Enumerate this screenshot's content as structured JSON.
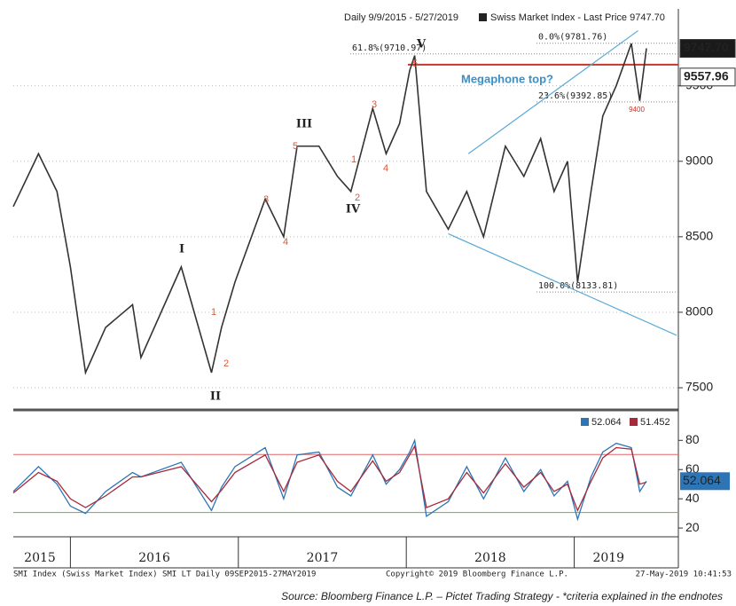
{
  "chart_data": [
    {
      "type": "line",
      "header": "Daily 9/9/2015 - 5/27/2019",
      "title": "Swiss Market Index - Last Price 9747.70",
      "year_labels": [
        "2015",
        "2016",
        "2017",
        "2018",
        "2019"
      ],
      "xticks": [
        2016,
        2017,
        2018,
        2019
      ],
      "xlim": [
        2015.66,
        2019.62
      ],
      "ylim": [
        7365,
        9980
      ],
      "yticks": [
        7500,
        8000,
        8500,
        9000,
        9500
      ],
      "grid": true,
      "x": [
        2015.66,
        2015.81,
        2015.92,
        2016.0,
        2016.09,
        2016.21,
        2016.37,
        2016.42,
        2016.66,
        2016.84,
        2016.9,
        2016.98,
        2017.16,
        2017.27,
        2017.35,
        2017.48,
        2017.59,
        2017.67,
        2017.8,
        2017.88,
        2017.96,
        2018.02,
        2018.05,
        2018.12,
        2018.25,
        2018.36,
        2018.46,
        2018.59,
        2018.7,
        2018.8,
        2018.88,
        2018.96,
        2019.02,
        2019.1,
        2019.17,
        2019.25,
        2019.34,
        2019.39,
        2019.43
      ],
      "series": [
        {
          "name": "Swiss Market Index",
          "color": "#333333",
          "values": [
            8700,
            9050,
            8800,
            8300,
            7600,
            7900,
            8050,
            7700,
            8300,
            7600,
            7900,
            8200,
            8750,
            8500,
            9100,
            9100,
            8900,
            8800,
            9350,
            9050,
            9250,
            9600,
            9700,
            8800,
            8550,
            8800,
            8500,
            9100,
            8900,
            9150,
            8800,
            9000,
            8200,
            8800,
            9300,
            9500,
            9780,
            9400,
            9748
          ]
        }
      ],
      "fib_levels": [
        {
          "label": "0.0%(9781.76)",
          "value": 9781.76
        },
        {
          "label": "61.8%(9710.97)",
          "value": 9710.97
        },
        {
          "label": "23.6%(9392.85)",
          "value": 9392.85
        },
        {
          "label": "100.0%(8133.81)",
          "value": 8133.81
        }
      ],
      "reference_lines": [
        {
          "value": 9640,
          "color": "#c0392b"
        }
      ],
      "trendlines": [
        {
          "color": "#5aa9d6",
          "x": [
            2018.37,
            2019.38
          ],
          "y": [
            9050,
            9865
          ]
        },
        {
          "color": "#5aa9d6",
          "x": [
            2018.25,
            2019.61
          ],
          "y": [
            8520,
            7847
          ]
        }
      ],
      "price_labels": [
        {
          "value": 9747.7,
          "label": "9747.70"
        },
        {
          "value": 9557.96,
          "label": "9557.96"
        }
      ],
      "annotations": [
        "V",
        "5",
        "III",
        "3",
        "5",
        "1",
        "4",
        "2",
        "IV",
        "3",
        "4",
        "I",
        "1",
        "2",
        "II",
        "Megaphone top?",
        "9400"
      ]
    },
    {
      "type": "line",
      "xlim": [
        2015.66,
        2019.62
      ],
      "ylim": [
        14,
        99
      ],
      "yticks": [
        20,
        40,
        60,
        80
      ],
      "x": [
        2015.66,
        2015.81,
        2015.92,
        2016.0,
        2016.09,
        2016.21,
        2016.37,
        2016.42,
        2016.66,
        2016.84,
        2016.9,
        2016.98,
        2017.16,
        2017.27,
        2017.35,
        2017.48,
        2017.59,
        2017.67,
        2017.8,
        2017.88,
        2017.96,
        2018.02,
        2018.05,
        2018.12,
        2018.25,
        2018.36,
        2018.46,
        2018.59,
        2018.7,
        2018.8,
        2018.88,
        2018.96,
        2019.02,
        2019.1,
        2019.17,
        2019.25,
        2019.34,
        2019.39,
        2019.43
      ],
      "series": [
        {
          "name": "52.064",
          "color": "#2e75b6",
          "values": [
            45,
            62,
            50,
            35,
            30,
            45,
            58,
            55,
            65,
            32,
            48,
            62,
            75,
            40,
            70,
            72,
            48,
            42,
            70,
            50,
            60,
            72,
            80,
            28,
            38,
            62,
            40,
            68,
            45,
            60,
            42,
            52,
            26,
            55,
            72,
            78,
            75,
            45,
            52.064
          ]
        },
        {
          "name": "51.452",
          "color": "#a52a3a",
          "values": [
            44,
            58,
            52,
            40,
            34,
            42,
            55,
            55,
            62,
            38,
            46,
            58,
            70,
            45,
            65,
            70,
            52,
            45,
            66,
            52,
            58,
            70,
            76,
            34,
            40,
            58,
            44,
            64,
            48,
            58,
            45,
            50,
            32,
            52,
            68,
            75,
            74,
            50,
            51.452
          ]
        }
      ],
      "reference_lines": [
        {
          "value": 70.3,
          "color": "#e06666"
        },
        {
          "value": 30.6,
          "color": "#6ab04c"
        }
      ],
      "last_label": {
        "value": 52.064,
        "label": "52.064"
      }
    }
  ],
  "footer": {
    "left": "SMI Index (Swiss Market Index) SMI LT  Daily 09SEP2015-27MAY2019",
    "center": "Copyright© 2019 Bloomberg Finance L.P.",
    "right": "27-May-2019 10:41:53"
  },
  "source": "Source: Bloomberg Finance L.P. – Pictet Trading Strategy - *criteria explained in the endnotes"
}
